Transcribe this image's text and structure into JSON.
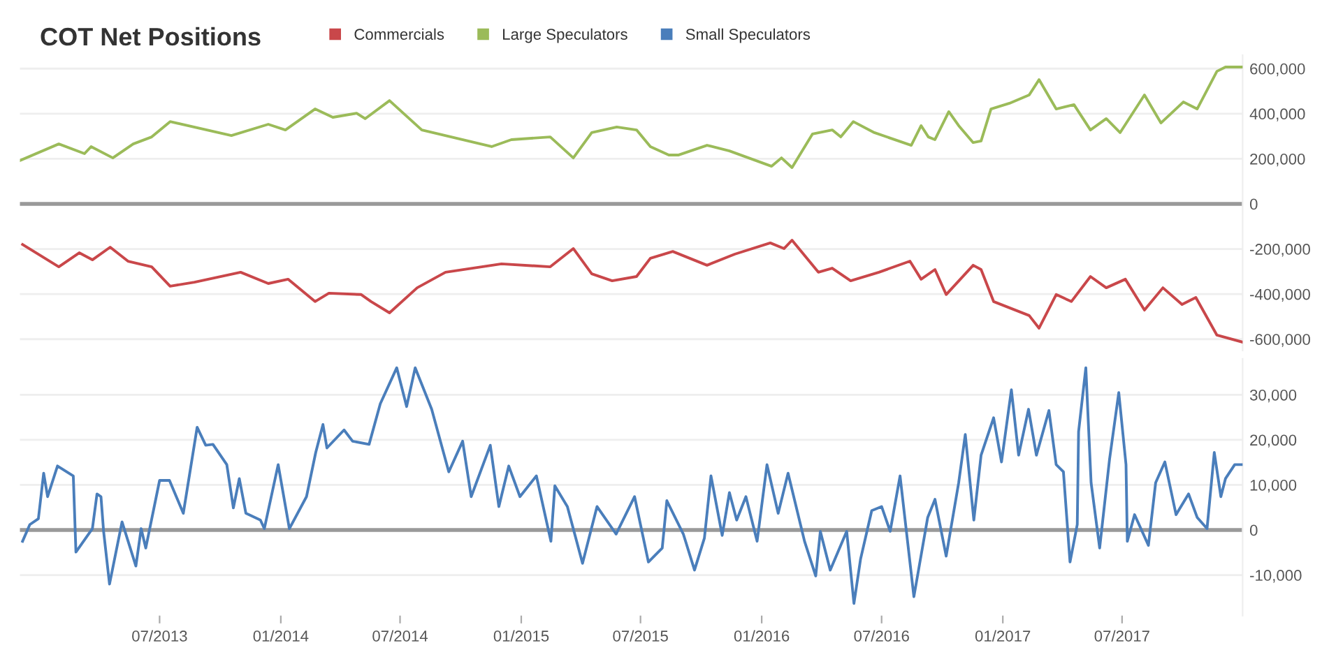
{
  "chart_data": [
    {
      "type": "line",
      "title": "COT Net Positions",
      "legend": "top",
      "grid": "y",
      "tick_labels": "y",
      "xlim": [
        "2012-12-01",
        "2017-12-31"
      ],
      "ylim": [
        -650000,
        660000
      ],
      "yticks": [
        {
          "value": 600000,
          "label": "600,000"
        },
        {
          "value": 400000,
          "label": "400,000"
        },
        {
          "value": 200000,
          "label": "200,000"
        },
        0,
        {
          "value": -200000,
          "label": "-200,000"
        },
        {
          "value": -400000,
          "label": "-400,000"
        },
        {
          "value": -600000,
          "label": "-600,000"
        }
      ],
      "ref_lines": [
        {
          "axis": "y",
          "value": 0,
          "color": "#999999"
        }
      ],
      "series": [
        {
          "name": "Commercials",
          "color": "#c9474a",
          "x": [
            "2012-12-05",
            "2013-01-29",
            "2013-03-01",
            "2013-03-21",
            "2013-04-17",
            "2013-05-14",
            "2013-06-19",
            "2013-07-17",
            "2013-08-23",
            "2013-11-01",
            "2013-12-13",
            "2014-01-12",
            "2014-02-22",
            "2014-03-15",
            "2014-05-03",
            "2014-05-18",
            "2014-06-15",
            "2014-07-27",
            "2014-09-08",
            "2014-12-02",
            "2015-02-14",
            "2015-03-21",
            "2015-04-18",
            "2015-05-19",
            "2015-06-25",
            "2015-07-16",
            "2015-08-19",
            "2015-10-10",
            "2015-11-21",
            "2016-01-14",
            "2016-02-04",
            "2016-02-16",
            "2016-03-27",
            "2016-04-17",
            "2016-05-15",
            "2016-06-27",
            "2016-08-13",
            "2016-08-30",
            "2016-09-20",
            "2016-10-07",
            "2016-11-17",
            "2016-11-29",
            "2016-12-18",
            "2017-02-10",
            "2017-02-25",
            "2017-03-23",
            "2017-04-15",
            "2017-05-14",
            "2017-06-07",
            "2017-07-06",
            "2017-08-04",
            "2017-09-01",
            "2017-09-30",
            "2017-10-21",
            "2017-11-22",
            "2017-12-31"
          ],
          "values": [
            -180000,
            -279000,
            -217000,
            -248000,
            -192000,
            -254000,
            -279000,
            -365000,
            -347000,
            -303000,
            -353000,
            -334000,
            -433000,
            -396000,
            -402000,
            -433000,
            -483000,
            -372000,
            -303000,
            -266000,
            -279000,
            -198000,
            -310000,
            -341000,
            -322000,
            -241000,
            -211000,
            -272000,
            -223000,
            -173000,
            -198000,
            -161000,
            -303000,
            -285000,
            -341000,
            -303000,
            -254000,
            -334000,
            -291000,
            -402000,
            -272000,
            -291000,
            -433000,
            -495000,
            -551000,
            -402000,
            -433000,
            -322000,
            -372000,
            -334000,
            -471000,
            -372000,
            -446000,
            -415000,
            -582000,
            -613000
          ]
        },
        {
          "name": "Large Speculators",
          "color": "#9bbb59",
          "x": [
            "2012-12-01",
            "2013-01-29",
            "2013-03-09",
            "2013-03-19",
            "2013-04-21",
            "2013-05-22",
            "2013-06-19",
            "2013-07-17",
            "2013-10-18",
            "2013-12-13",
            "2014-01-08",
            "2014-02-22",
            "2014-03-21",
            "2014-04-26",
            "2014-05-09",
            "2014-06-15",
            "2014-08-03",
            "2014-11-17",
            "2014-12-17",
            "2015-02-14",
            "2015-03-21",
            "2015-04-18",
            "2015-05-26",
            "2015-06-25",
            "2015-07-16",
            "2015-08-13",
            "2015-08-28",
            "2015-10-10",
            "2015-11-13",
            "2016-01-16",
            "2016-01-31",
            "2016-02-16",
            "2016-03-18",
            "2016-04-17",
            "2016-04-30",
            "2016-05-19",
            "2016-06-20",
            "2016-08-15",
            "2016-08-30",
            "2016-09-10",
            "2016-09-20",
            "2016-10-11",
            "2016-10-26",
            "2016-11-17",
            "2016-11-29",
            "2016-12-14",
            "2017-01-11",
            "2017-02-10",
            "2017-02-25",
            "2017-03-23",
            "2017-04-19",
            "2017-05-14",
            "2017-06-07",
            "2017-06-28",
            "2017-08-04",
            "2017-08-29",
            "2017-10-02",
            "2017-10-23",
            "2017-11-22",
            "2017-12-05",
            "2017-12-31"
          ],
          "values": [
            192000,
            266000,
            223000,
            254000,
            204000,
            266000,
            297000,
            365000,
            303000,
            353000,
            328000,
            421000,
            384000,
            402000,
            378000,
            458000,
            328000,
            254000,
            285000,
            297000,
            204000,
            316000,
            341000,
            328000,
            254000,
            217000,
            217000,
            260000,
            235000,
            167000,
            204000,
            161000,
            310000,
            328000,
            297000,
            365000,
            316000,
            260000,
            347000,
            297000,
            285000,
            409000,
            347000,
            272000,
            279000,
            421000,
            446000,
            483000,
            551000,
            421000,
            440000,
            328000,
            378000,
            316000,
            483000,
            359000,
            452000,
            421000,
            588000,
            607000,
            607000
          ]
        }
      ]
    },
    {
      "type": "line",
      "legend": "top",
      "grid": "y",
      "xlim": [
        "2012-12-01",
        "2017-12-31"
      ],
      "xticks": [
        {
          "value": "2013-07-01",
          "label": "07/2013"
        },
        {
          "value": "2014-01-01",
          "label": "01/2014"
        },
        {
          "value": "2014-07-01",
          "label": "07/2014"
        },
        {
          "value": "2015-01-01",
          "label": "01/2015"
        },
        {
          "value": "2015-07-01",
          "label": "07/2015"
        },
        {
          "value": "2016-01-01",
          "label": "01/2016"
        },
        {
          "value": "2016-07-01",
          "label": "07/2016"
        },
        {
          "value": "2017-01-01",
          "label": "01/2017"
        },
        {
          "value": "2017-07-01",
          "label": "07/2017"
        }
      ],
      "ylim": [
        -19000,
        38000
      ],
      "yticks": [
        {
          "value": 30000,
          "label": "30,000"
        },
        {
          "value": 20000,
          "label": "20,000"
        },
        {
          "value": 10000,
          "label": "10,000"
        },
        0,
        {
          "value": -10000,
          "label": "-10,000"
        }
      ],
      "ref_lines": [
        {
          "axis": "y",
          "value": 0,
          "color": "#999999"
        }
      ],
      "series": [
        {
          "name": "Small Speculators",
          "color": "#4a7ebb",
          "x": [
            "2012-12-05",
            "2012-12-16",
            "2012-12-29",
            "2013-01-06",
            "2013-01-12",
            "2013-01-27",
            "2013-02-20",
            "2013-02-24",
            "2013-03-21",
            "2013-03-28",
            "2013-04-03",
            "2013-04-07",
            "2013-04-16",
            "2013-05-05",
            "2013-05-26",
            "2013-06-03",
            "2013-06-10",
            "2013-07-01",
            "2013-07-16",
            "2013-08-06",
            "2013-08-27",
            "2013-09-09",
            "2013-09-20",
            "2013-10-11",
            "2013-10-21",
            "2013-10-30",
            "2013-11-09",
            "2013-12-01",
            "2013-12-07",
            "2013-12-28",
            "2014-01-14",
            "2014-02-09",
            "2014-02-23",
            "2014-03-06",
            "2014-03-12",
            "2014-04-07",
            "2014-04-20",
            "2014-05-15",
            "2014-06-01",
            "2014-06-26",
            "2014-07-11",
            "2014-07-24",
            "2014-08-18",
            "2014-09-13",
            "2014-10-04",
            "2014-10-17",
            "2014-11-15",
            "2014-11-28",
            "2014-12-13",
            "2014-12-30",
            "2015-01-24",
            "2015-02-15",
            "2015-02-21",
            "2015-03-12",
            "2015-04-04",
            "2015-04-26",
            "2015-05-25",
            "2015-06-22",
            "2015-07-13",
            "2015-08-03",
            "2015-08-10",
            "2015-09-04",
            "2015-09-21",
            "2015-10-06",
            "2015-10-16",
            "2015-11-02",
            "2015-11-13",
            "2015-11-24",
            "2015-12-08",
            "2015-12-25",
            "2016-01-09",
            "2016-01-26",
            "2016-02-10",
            "2016-03-06",
            "2016-03-23",
            "2016-03-30",
            "2016-04-14",
            "2016-05-09",
            "2016-05-20",
            "2016-05-30",
            "2016-06-16",
            "2016-07-01",
            "2016-07-14",
            "2016-07-29",
            "2016-08-19",
            "2016-09-09",
            "2016-09-20",
            "2016-10-07",
            "2016-10-26",
            "2016-11-05",
            "2016-11-18",
            "2016-11-29",
            "2016-12-18",
            "2016-12-30",
            "2017-01-14",
            "2017-01-25",
            "2017-02-09",
            "2017-02-21",
            "2017-03-12",
            "2017-03-23",
            "2017-04-03",
            "2017-04-13",
            "2017-04-24",
            "2017-04-26",
            "2017-05-07",
            "2017-05-15",
            "2017-05-28",
            "2017-06-12",
            "2017-06-26",
            "2017-07-07",
            "2017-07-09",
            "2017-07-20",
            "2017-08-10",
            "2017-08-21",
            "2017-09-04",
            "2017-09-21",
            "2017-10-10",
            "2017-10-23",
            "2017-11-07",
            "2017-11-18",
            "2017-11-28",
            "2017-12-05",
            "2017-12-19",
            "2017-12-30"
          ],
          "values": [
            -2500,
            1200,
            2500,
            12600,
            7400,
            14200,
            12000,
            -4900,
            300,
            8000,
            7400,
            -300,
            -12000,
            1800,
            -8000,
            300,
            -4000,
            11000,
            11000,
            3700,
            22800,
            18800,
            19000,
            14500,
            4900,
            11400,
            3700,
            2200,
            300,
            14500,
            300,
            7400,
            17200,
            23400,
            18200,
            22200,
            19700,
            19000,
            28000,
            36000,
            27400,
            36000,
            26800,
            12900,
            19700,
            7400,
            18800,
            5200,
            14200,
            7400,
            12000,
            -2500,
            9800,
            5200,
            -7400,
            5200,
            -900,
            7400,
            -7100,
            -4000,
            6500,
            -900,
            -8900,
            -1800,
            12000,
            -1200,
            8300,
            2200,
            7400,
            -2500,
            14500,
            3700,
            12600,
            -2500,
            -10200,
            -300,
            -8900,
            -300,
            -16300,
            -6500,
            4300,
            5200,
            -300,
            12000,
            -14800,
            2800,
            6800,
            -5800,
            10500,
            21200,
            2200,
            16600,
            24900,
            15100,
            31100,
            16600,
            26800,
            16600,
            26500,
            14500,
            12900,
            -7100,
            1200,
            21800,
            36000,
            10500,
            -4000,
            15700,
            30500,
            14500,
            -2500,
            3400,
            -3400,
            10500,
            15100,
            3400,
            8000,
            2800,
            300,
            17200,
            7400,
            11400,
            14500,
            14500
          ]
        }
      ]
    }
  ]
}
